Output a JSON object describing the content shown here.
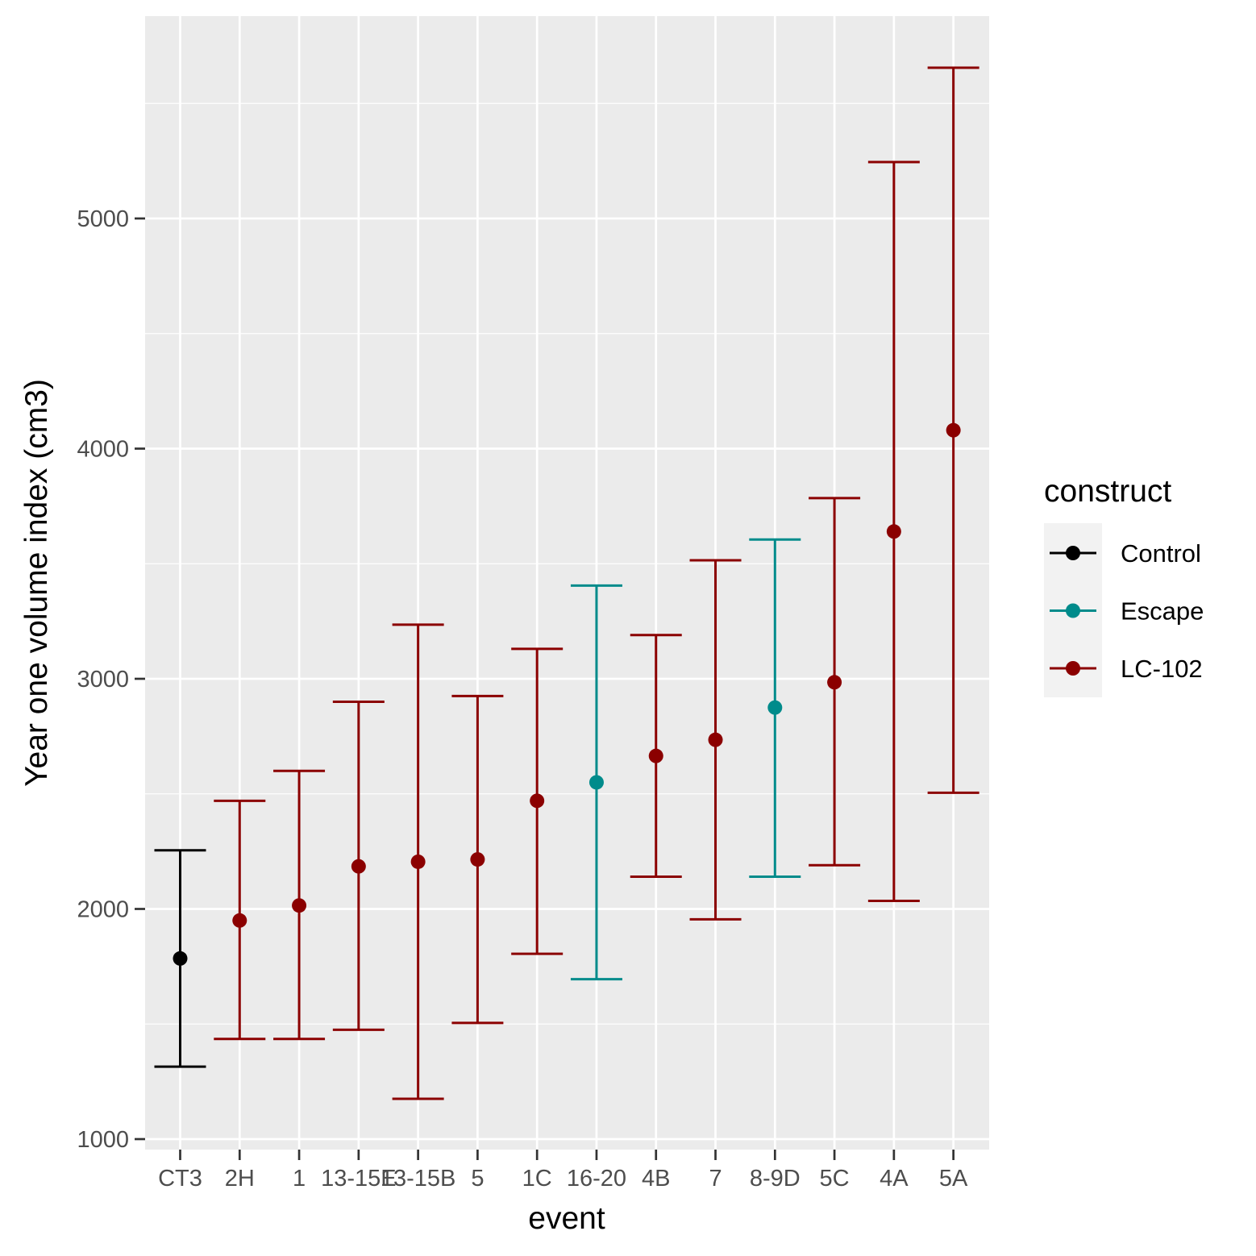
{
  "chart_data": {
    "type": "errorbar",
    "xlabel": "event",
    "ylabel": "Year one volume index (cm3)",
    "ylim": [
      950,
      5800
    ],
    "yticks": [
      1000,
      2000,
      3000,
      4000,
      5000
    ],
    "grid": true,
    "legend": {
      "title": "construct",
      "position": "right",
      "entries": [
        {
          "label": "Control",
          "color": "#000000"
        },
        {
          "label": "Escape",
          "color": "#008b8b"
        },
        {
          "label": "LC-102",
          "color": "#8b0000"
        }
      ]
    },
    "categories": [
      "CT3",
      "2H",
      "1",
      "13-15E",
      "13-15B",
      "5",
      "1C",
      "16-20",
      "4B",
      "7",
      "8-9D",
      "5C",
      "4A",
      "5A"
    ],
    "points": [
      {
        "event": "CT3",
        "construct": "Control",
        "mean": 1785,
        "lower": 1315,
        "upper": 2255
      },
      {
        "event": "2H",
        "construct": "LC-102",
        "mean": 1950,
        "lower": 1435,
        "upper": 2470
      },
      {
        "event": "1",
        "construct": "LC-102",
        "mean": 2015,
        "lower": 1435,
        "upper": 2600
      },
      {
        "event": "13-15E",
        "construct": "LC-102",
        "mean": 2185,
        "lower": 1475,
        "upper": 2900
      },
      {
        "event": "13-15B",
        "construct": "LC-102",
        "mean": 2205,
        "lower": 1175,
        "upper": 3235
      },
      {
        "event": "5",
        "construct": "LC-102",
        "mean": 2215,
        "lower": 1505,
        "upper": 2925
      },
      {
        "event": "1C",
        "construct": "LC-102",
        "mean": 2470,
        "lower": 1805,
        "upper": 3130
      },
      {
        "event": "16-20",
        "construct": "Escape",
        "mean": 2550,
        "lower": 1695,
        "upper": 3405
      },
      {
        "event": "4B",
        "construct": "LC-102",
        "mean": 2665,
        "lower": 2140,
        "upper": 3190
      },
      {
        "event": "7",
        "construct": "LC-102",
        "mean": 2735,
        "lower": 1955,
        "upper": 3515
      },
      {
        "event": "8-9D",
        "construct": "Escape",
        "mean": 2875,
        "lower": 2140,
        "upper": 3605
      },
      {
        "event": "5C",
        "construct": "LC-102",
        "mean": 2985,
        "lower": 2190,
        "upper": 3785
      },
      {
        "event": "4A",
        "construct": "LC-102",
        "mean": 3640,
        "lower": 2035,
        "upper": 5245
      },
      {
        "event": "5A",
        "construct": "LC-102",
        "mean": 4080,
        "lower": 2505,
        "upper": 5655
      }
    ]
  }
}
